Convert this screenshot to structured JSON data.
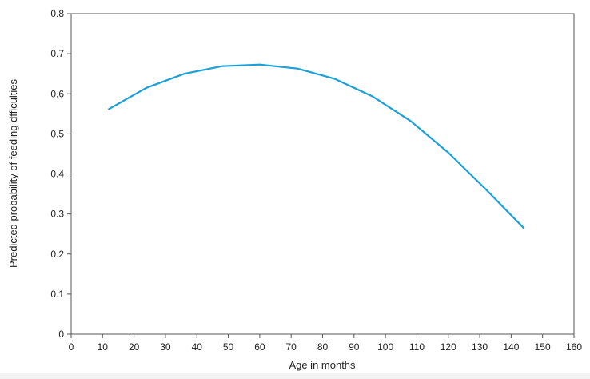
{
  "chart_data": {
    "type": "line",
    "title": "",
    "xlabel": "Age in months",
    "ylabel": "Predicted probability of feeding dfficulties",
    "xlim": [
      0,
      160
    ],
    "ylim": [
      0,
      0.8
    ],
    "x_ticks": [
      0,
      10,
      20,
      30,
      40,
      50,
      60,
      70,
      80,
      90,
      100,
      110,
      120,
      130,
      140,
      150,
      160
    ],
    "y_ticks": [
      0,
      0.1,
      0.2,
      0.3,
      0.4,
      0.5,
      0.6,
      0.7,
      0.8
    ],
    "grid": false,
    "legend": "none",
    "series": [
      {
        "color": "#1a9fd6",
        "x": [
          12,
          24,
          36,
          48,
          60,
          72,
          84,
          96,
          108,
          120,
          132,
          144
        ],
        "y": [
          0.562,
          0.615,
          0.65,
          0.669,
          0.673,
          0.663,
          0.637,
          0.593,
          0.532,
          0.453,
          0.361,
          0.265
        ]
      }
    ]
  }
}
